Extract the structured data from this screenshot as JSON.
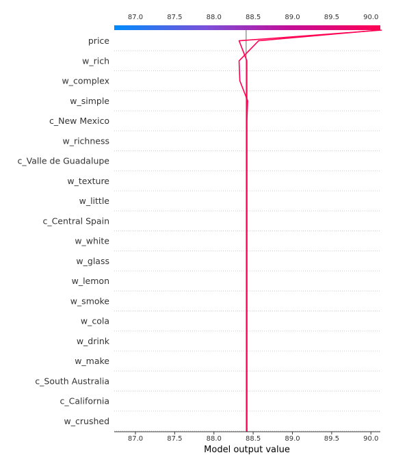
{
  "chart_data": {
    "type": "line",
    "title": "",
    "xlabel": "Model output value",
    "ylabel": "",
    "xlim": [
      86.73,
      90.12
    ],
    "x_ticks": [
      "87.0",
      "87.5",
      "88.0",
      "88.5",
      "89.0",
      "89.5",
      "90.0"
    ],
    "base_value": 88.41,
    "grid": "dotted horizontal lines between features",
    "colormap": [
      "#008bfb",
      "#7b4fd8",
      "#c10f9a",
      "#ff0052"
    ],
    "line_color": "#ff0052",
    "features": [
      "price",
      "w_rich",
      "w_complex",
      "w_simple",
      "c_New Mexico",
      "w_richness",
      "c_Valle de Guadalupe",
      "w_texture",
      "w_little",
      "c_Central Spain",
      "w_white",
      "w_glass",
      "w_lemon",
      "w_smoke",
      "w_cola",
      "w_drink",
      "w_make",
      "c_South Australia",
      "c_California",
      "w_crushed"
    ],
    "series": [
      {
        "values": [
          88.42,
          88.42,
          88.42,
          88.42,
          88.42,
          88.42,
          88.42,
          88.42,
          88.42,
          88.42,
          88.42,
          88.42,
          88.42,
          88.42,
          88.42,
          88.42,
          88.42,
          88.42,
          88.42,
          88.42,
          88.32,
          90.14
        ]
      },
      {
        "values": [
          88.42,
          88.42,
          88.42,
          88.42,
          88.42,
          88.42,
          88.42,
          88.42,
          88.42,
          88.42,
          88.42,
          88.42,
          88.42,
          88.42,
          88.42,
          88.42,
          88.42,
          88.43,
          88.33,
          88.32,
          88.57,
          90.1
        ]
      }
    ]
  }
}
